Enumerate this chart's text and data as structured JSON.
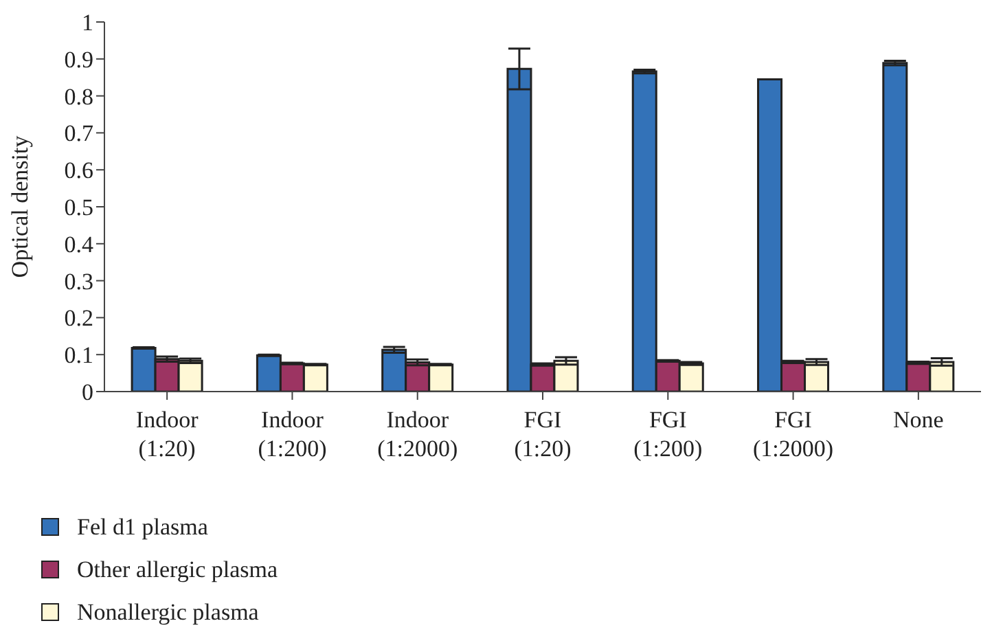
{
  "chart_data": {
    "type": "bar",
    "ylabel": "Optical density",
    "categories": [
      "Indoor (1:20)",
      "Indoor (1:200)",
      "Indoor (1:2000)",
      "FGI (1:20)",
      "FGI (1:200)",
      "FGI (1:2000)",
      "None"
    ],
    "series": [
      {
        "name": "Fel d1 plasma",
        "color": "#3372b8",
        "values": [
          0.118,
          0.098,
          0.113,
          0.873,
          0.866,
          0.845,
          0.889
        ],
        "errors": [
          0.002,
          0.002,
          0.008,
          0.055,
          0.005,
          null,
          0.006
        ]
      },
      {
        "name": "Other allergic plasma",
        "color": "#9c3462",
        "values": [
          0.088,
          0.076,
          0.079,
          0.073,
          0.083,
          0.08,
          0.078
        ],
        "errors": [
          0.007,
          0.002,
          0.008,
          0.003,
          0.002,
          0.003,
          0.003
        ]
      },
      {
        "name": "Nonallergic plasma",
        "color": "#fff8d6",
        "values": [
          0.083,
          0.073,
          0.073,
          0.083,
          0.076,
          0.08,
          0.08
        ],
        "errors": [
          0.006,
          0.002,
          0.002,
          0.01,
          0.004,
          0.008,
          0.01
        ]
      }
    ],
    "ylim": [
      0,
      1
    ],
    "yticks": [
      0,
      0.1,
      0.2,
      0.3,
      0.4,
      0.5,
      0.6,
      0.7,
      0.8,
      0.9,
      1
    ],
    "grid": false,
    "legend": "bottom"
  }
}
